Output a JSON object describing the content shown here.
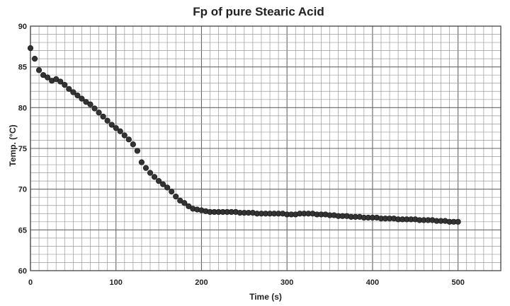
{
  "chart_data": {
    "type": "scatter",
    "title": "Fp of pure Stearic Acid",
    "xlabel": "Time (s)",
    "ylabel": "Temp. (°C)",
    "xlim": [
      0,
      550
    ],
    "ylim": [
      60,
      90
    ],
    "x_ticks": [
      0,
      100,
      200,
      300,
      400,
      500
    ],
    "y_ticks": [
      60,
      65,
      70,
      75,
      80,
      85,
      90
    ],
    "grid": true,
    "marker_color": "#333333",
    "x": [
      0,
      5,
      10,
      15,
      20,
      25,
      30,
      35,
      40,
      45,
      50,
      55,
      60,
      65,
      70,
      75,
      80,
      85,
      90,
      95,
      100,
      105,
      110,
      115,
      120,
      125,
      130,
      135,
      140,
      145,
      150,
      155,
      160,
      165,
      170,
      175,
      180,
      185,
      190,
      195,
      200,
      205,
      210,
      215,
      220,
      225,
      230,
      235,
      240,
      245,
      250,
      255,
      260,
      265,
      270,
      275,
      280,
      285,
      290,
      295,
      300,
      305,
      310,
      315,
      320,
      325,
      330,
      335,
      340,
      345,
      350,
      355,
      360,
      365,
      370,
      375,
      380,
      385,
      390,
      395,
      400,
      405,
      410,
      415,
      420,
      425,
      430,
      435,
      440,
      445,
      450,
      455,
      460,
      465,
      470,
      475,
      480,
      485,
      490,
      495,
      500
    ],
    "y": [
      87.3,
      86.0,
      84.6,
      84.0,
      83.7,
      83.3,
      83.5,
      83.2,
      82.8,
      82.3,
      81.9,
      81.5,
      81.1,
      80.7,
      80.4,
      79.9,
      79.4,
      78.9,
      78.4,
      77.9,
      77.5,
      77.1,
      76.6,
      76.1,
      75.5,
      74.7,
      73.3,
      72.6,
      72.0,
      71.5,
      71.0,
      70.6,
      70.2,
      69.7,
      69.1,
      68.6,
      68.3,
      67.9,
      67.6,
      67.5,
      67.4,
      67.3,
      67.2,
      67.2,
      67.2,
      67.2,
      67.2,
      67.2,
      67.2,
      67.1,
      67.1,
      67.1,
      67.1,
      67.0,
      67.0,
      67.0,
      67.0,
      67.0,
      67.0,
      67.0,
      66.9,
      66.9,
      66.9,
      67.0,
      67.0,
      67.0,
      67.0,
      66.9,
      66.9,
      66.9,
      66.8,
      66.8,
      66.7,
      66.7,
      66.7,
      66.6,
      66.6,
      66.6,
      66.5,
      66.5,
      66.5,
      66.5,
      66.4,
      66.4,
      66.4,
      66.4,
      66.3,
      66.3,
      66.3,
      66.3,
      66.3,
      66.2,
      66.2,
      66.2,
      66.2,
      66.1,
      66.1,
      66.1,
      66.0,
      66.0,
      66.0
    ]
  }
}
